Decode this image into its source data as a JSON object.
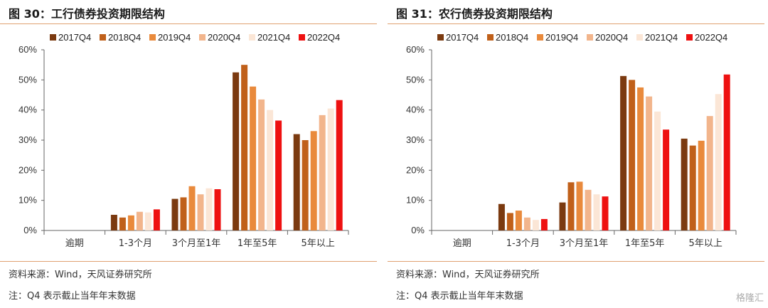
{
  "series_colors": [
    "#7b3a10",
    "#c0601a",
    "#e98a3c",
    "#f2b58c",
    "#fbe6d6",
    "#ee1111"
  ],
  "chart_data": [
    {
      "type": "bar",
      "title": "图 30：工行债券投资期限结构",
      "categories": [
        "逾期",
        "1-3个月",
        "3个月至1年",
        "1年至5年",
        "5年以上"
      ],
      "ylim": [
        0,
        60
      ],
      "yticks": [
        "0%",
        "10%",
        "20%",
        "30%",
        "40%",
        "50%",
        "60%"
      ],
      "series": [
        {
          "name": "2017Q4",
          "values": [
            0,
            5.2,
            10.5,
            52.5,
            32.0
          ]
        },
        {
          "name": "2018Q4",
          "values": [
            0,
            4.3,
            11.0,
            55.0,
            30.0
          ]
        },
        {
          "name": "2019Q4",
          "values": [
            0,
            5.0,
            14.7,
            47.8,
            33.0
          ]
        },
        {
          "name": "2020Q4",
          "values": [
            0,
            6.2,
            12.0,
            43.5,
            38.3
          ]
        },
        {
          "name": "2021Q4",
          "values": [
            0,
            6.0,
            14.0,
            40.0,
            40.5
          ]
        },
        {
          "name": "2022Q4",
          "values": [
            0,
            7.0,
            13.7,
            36.5,
            43.3
          ]
        }
      ]
    },
    {
      "type": "bar",
      "title": "图 31：农行债券投资期限结构",
      "categories": [
        "逾期",
        "1-3个月",
        "3个月至1年",
        "1年至5年",
        "5年以上"
      ],
      "ylim": [
        0,
        60
      ],
      "yticks": [
        "0%",
        "10%",
        "20%",
        "30%",
        "40%",
        "50%",
        "60%"
      ],
      "series": [
        {
          "name": "2017Q4",
          "values": [
            0,
            8.8,
            9.3,
            51.3,
            30.5
          ]
        },
        {
          "name": "2018Q4",
          "values": [
            0,
            5.8,
            16.0,
            50.0,
            28.2
          ]
        },
        {
          "name": "2019Q4",
          "values": [
            0,
            6.6,
            16.2,
            47.5,
            29.8
          ]
        },
        {
          "name": "2020Q4",
          "values": [
            0,
            4.3,
            13.5,
            44.5,
            38.0
          ]
        },
        {
          "name": "2021Q4",
          "values": [
            0,
            3.5,
            12.0,
            39.5,
            45.3
          ]
        },
        {
          "name": "2022Q4",
          "values": [
            0,
            3.8,
            11.3,
            33.5,
            51.8
          ]
        }
      ]
    }
  ],
  "panels": [
    {
      "source": "资料来源：Wind，天风证券研究所",
      "note": "注：Q4 表示截止当年年末数据"
    },
    {
      "source": "资料来源：Wind，天风证券研究所",
      "note": "注：Q4 表示截止当年年末数据"
    }
  ],
  "watermark": "格隆汇"
}
